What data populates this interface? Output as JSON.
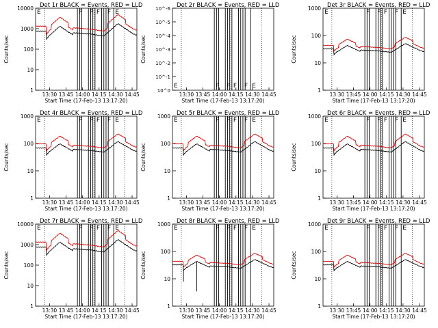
{
  "window": {
    "title": ""
  },
  "colors": {
    "events": "#000000",
    "lld": "#d40000",
    "axis": "#000000",
    "background": "#ffffff"
  },
  "common": {
    "ylabel": "Counts/sec",
    "xlabel": "Start Time (17-Feb-13 13:17:20)",
    "xticks": [
      "13:30",
      "13:45",
      "14:00",
      "14:15",
      "14:30",
      "14:45"
    ],
    "ytick_labels_log": [
      "1",
      "10",
      "100",
      "1000",
      "10000"
    ],
    "ytick_labels_zero": [
      "10^0",
      "10^-1",
      "10^-2",
      "10^-3",
      "10^-4",
      "10^-5",
      "10^-6"
    ],
    "marker_labels": [
      "E",
      "F",
      "F",
      "F",
      "F",
      "E"
    ],
    "x_range_minutes": [
      0,
      92
    ],
    "y_scale": "log"
  },
  "chart_data": [
    {
      "type": "line",
      "title": "Det 1r BLACK = Events, RED = LLD",
      "ylim": [
        1,
        10000
      ],
      "has_data": true,
      "spikes": false,
      "events_level": 1.0,
      "series": [
        {
          "name": "Events",
          "color": "black"
        },
        {
          "name": "LLD",
          "color": "red"
        }
      ]
    },
    {
      "type": "line",
      "title": "Det 2r BLACK = Events, RED = LLD",
      "ylim": [
        1,
        1e-06
      ],
      "has_data": false,
      "spikes": false,
      "events_level": 0,
      "series": [
        {
          "name": "Events",
          "color": "black"
        },
        {
          "name": "LLD",
          "color": "red"
        }
      ]
    },
    {
      "type": "line",
      "title": "Det 3r BLACK = Events, RED = LLD",
      "ylim": [
        1,
        1000
      ],
      "has_data": true,
      "spikes": false,
      "events_level": 0.7,
      "series": [
        {
          "name": "Events",
          "color": "black"
        },
        {
          "name": "LLD",
          "color": "red"
        }
      ]
    },
    {
      "type": "line",
      "title": "Det 4r BLACK = Events, RED = LLD",
      "ylim": [
        1,
        1000
      ],
      "has_data": true,
      "spikes": false,
      "events_level": 0.85,
      "series": [
        {
          "name": "Events",
          "color": "black"
        },
        {
          "name": "LLD",
          "color": "red"
        }
      ]
    },
    {
      "type": "line",
      "title": "Det 5r BLACK = Events, RED = LLD",
      "ylim": [
        1,
        1000
      ],
      "has_data": true,
      "spikes": false,
      "events_level": 0.85,
      "series": [
        {
          "name": "Events",
          "color": "black"
        },
        {
          "name": "LLD",
          "color": "red"
        }
      ]
    },
    {
      "type": "line",
      "title": "Det 6r BLACK = Events, RED = LLD",
      "ylim": [
        1,
        1000
      ],
      "has_data": true,
      "spikes": false,
      "events_level": 0.85,
      "series": [
        {
          "name": "Events",
          "color": "black"
        },
        {
          "name": "LLD",
          "color": "red"
        }
      ]
    },
    {
      "type": "line",
      "title": "Det 7r BLACK = Events, RED = LLD",
      "ylim": [
        1,
        10000
      ],
      "has_data": true,
      "spikes": false,
      "events_level": 1.0,
      "series": [
        {
          "name": "Events",
          "color": "black"
        },
        {
          "name": "LLD",
          "color": "red"
        }
      ]
    },
    {
      "type": "line",
      "title": "Det 8r BLACK = Events, RED = LLD",
      "ylim": [
        1,
        1000
      ],
      "has_data": true,
      "spikes": true,
      "events_level": 0.7,
      "series": [
        {
          "name": "Events",
          "color": "black"
        },
        {
          "name": "LLD",
          "color": "red"
        }
      ]
    },
    {
      "type": "line",
      "title": "Det 9r BLACK = Events, RED = LLD",
      "ylim": [
        1,
        1000
      ],
      "has_data": true,
      "spikes": false,
      "events_level": 0.7,
      "series": [
        {
          "name": "Events",
          "color": "black"
        },
        {
          "name": "LLD",
          "color": "red"
        }
      ]
    }
  ]
}
